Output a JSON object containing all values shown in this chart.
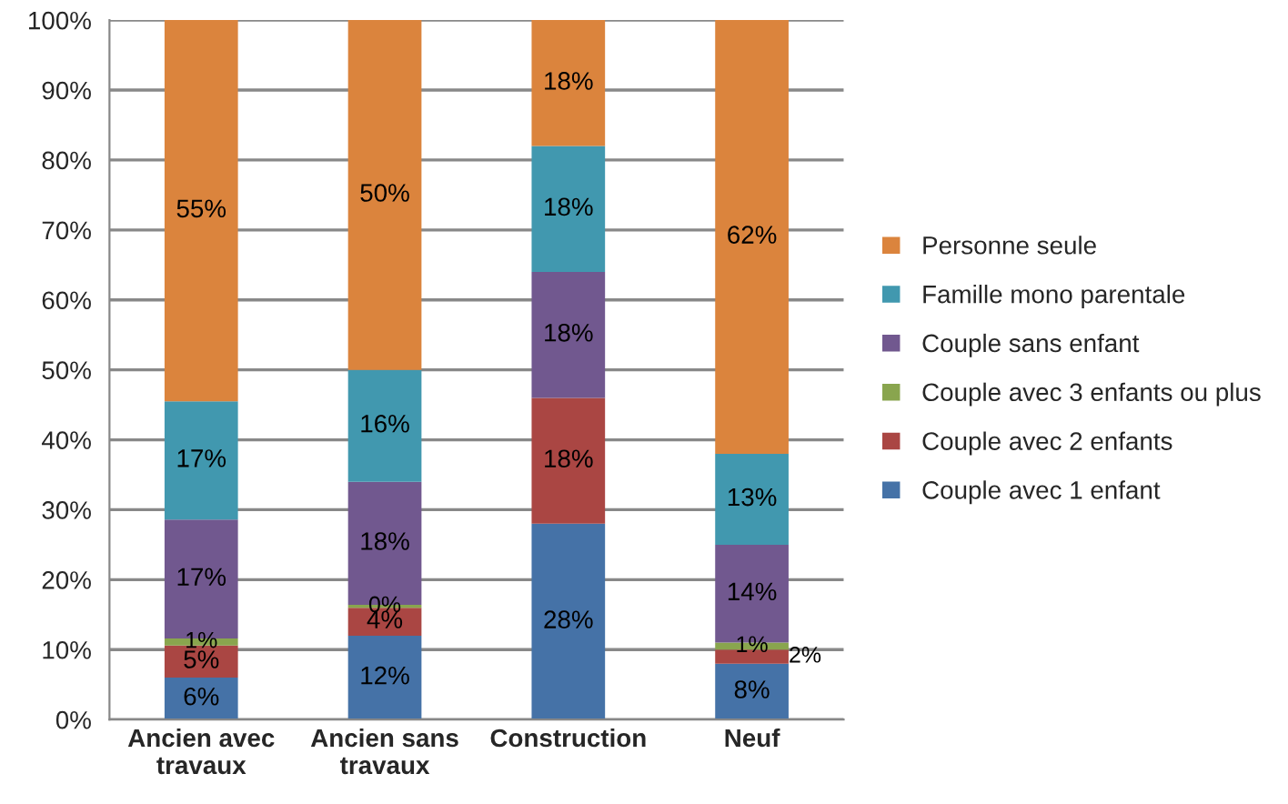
{
  "chart_data": {
    "type": "bar",
    "stacked": true,
    "categories": [
      "Ancien avec\ntravaux",
      "Ancien sans\ntravaux",
      "Construction",
      "Neuf"
    ],
    "series": [
      {
        "name": "Couple avec 1 enfant",
        "color": "#4572a7",
        "values": [
          6,
          12,
          28,
          8
        ],
        "value_labels": [
          "6%",
          "12%",
          "28%",
          "8%"
        ]
      },
      {
        "name": "Couple avec 2 enfants",
        "color": "#aa4643",
        "values": [
          4.6,
          4,
          18,
          2
        ],
        "value_labels": [
          "5%",
          "4%",
          "18%",
          "2%"
        ]
      },
      {
        "name": "Couple avec 3 enfants ou plus",
        "color": "#89a54e",
        "values": [
          1,
          0.4,
          0,
          1
        ],
        "value_labels": [
          "1%",
          "0%",
          null,
          "1%"
        ]
      },
      {
        "name": "Couple sans enfant",
        "color": "#71588f",
        "values": [
          17,
          17.6,
          18,
          14
        ],
        "value_labels": [
          "17%",
          "18%",
          "18%",
          "14%"
        ]
      },
      {
        "name": "Famille mono parentale",
        "color": "#4198af",
        "values": [
          16.9,
          16,
          18,
          13
        ],
        "value_labels": [
          "17%",
          "16%",
          "18%",
          "13%"
        ]
      },
      {
        "name": "Personne seule",
        "color": "#db843d",
        "values": [
          54.5,
          50,
          18,
          62
        ],
        "value_labels": [
          "55%",
          "50%",
          "18%",
          "62%"
        ]
      }
    ],
    "ylim": [
      0,
      100
    ],
    "yticks": [
      {
        "value": 0,
        "label": "0%"
      },
      {
        "value": 10,
        "label": "10%"
      },
      {
        "value": 20,
        "label": "20%"
      },
      {
        "value": 30,
        "label": "30%"
      },
      {
        "value": 40,
        "label": "40%"
      },
      {
        "value": 50,
        "label": "50%"
      },
      {
        "value": 60,
        "label": "60%"
      },
      {
        "value": 70,
        "label": "70%"
      },
      {
        "value": 80,
        "label": "80%"
      },
      {
        "value": 90,
        "label": "90%"
      },
      {
        "value": 100,
        "label": "100%"
      }
    ],
    "grid": "y",
    "legend": "right"
  }
}
